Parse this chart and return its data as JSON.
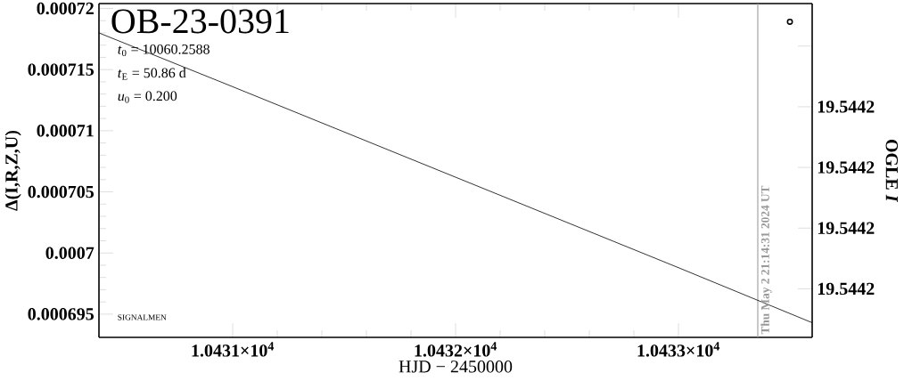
{
  "chart_data": {
    "type": "line",
    "title": "OB-23-0391",
    "xlabel": "HJD − 2450000",
    "ylabel": "Δ(I,R,Z,U)",
    "y2label": "OGLE *I*",
    "annotations": [
      "*t*$_{0}$ = 10060.2588",
      "*t*$_{E}$ = 50.86 d",
      "*u*$_{0}$ = 0.200",
      "SIGNALMEN",
      "Thu May  2 21:14:31 2024 UT"
    ],
    "xlim": [
      10430.4,
      10433.6
    ],
    "xticks": [
      {
        "value": 10431,
        "label": "1.0431×10$^{4}$"
      },
      {
        "value": 10432,
        "label": "1.0432×10$^{4}$"
      },
      {
        "value": 10433,
        "label": "1.0433×10$^{4}$"
      }
    ],
    "ylim": [
      0.0006931,
      0.0007204
    ],
    "yticks": [
      0.000695,
      0.0007,
      0.000705,
      0.00071,
      0.000715,
      0.00072
    ],
    "y2lim": [
      19.544218,
      19.544163
    ],
    "y2ticks": [
      {
        "value": 19.54417,
        "label": null
      },
      {
        "value": 19.54418,
        "label": "19.5442"
      },
      {
        "value": 19.54419,
        "label": "19.5442"
      },
      {
        "value": 19.5442,
        "label": "19.5442"
      },
      {
        "value": 19.54421,
        "label": "19.5442"
      }
    ],
    "grid": false,
    "series": [
      {
        "color": "#000000",
        "x": [
          10430.4,
          10431,
          10432,
          10433,
          10433.6
        ],
        "values": [
          0.000718,
          0.0007136,
          0.0007062,
          0.0006988,
          0.0006943
        ]
      },
      {
        "type": "scatter",
        "axis": "y2",
        "marker": "circle",
        "color": "#000000",
        "x": [
          10433.5
        ],
        "values": [
          19.544166
        ]
      }
    ],
    "ref_lines": [
      {
        "axis": "x",
        "value": 10433.356,
        "color": "#999999"
      }
    ]
  }
}
